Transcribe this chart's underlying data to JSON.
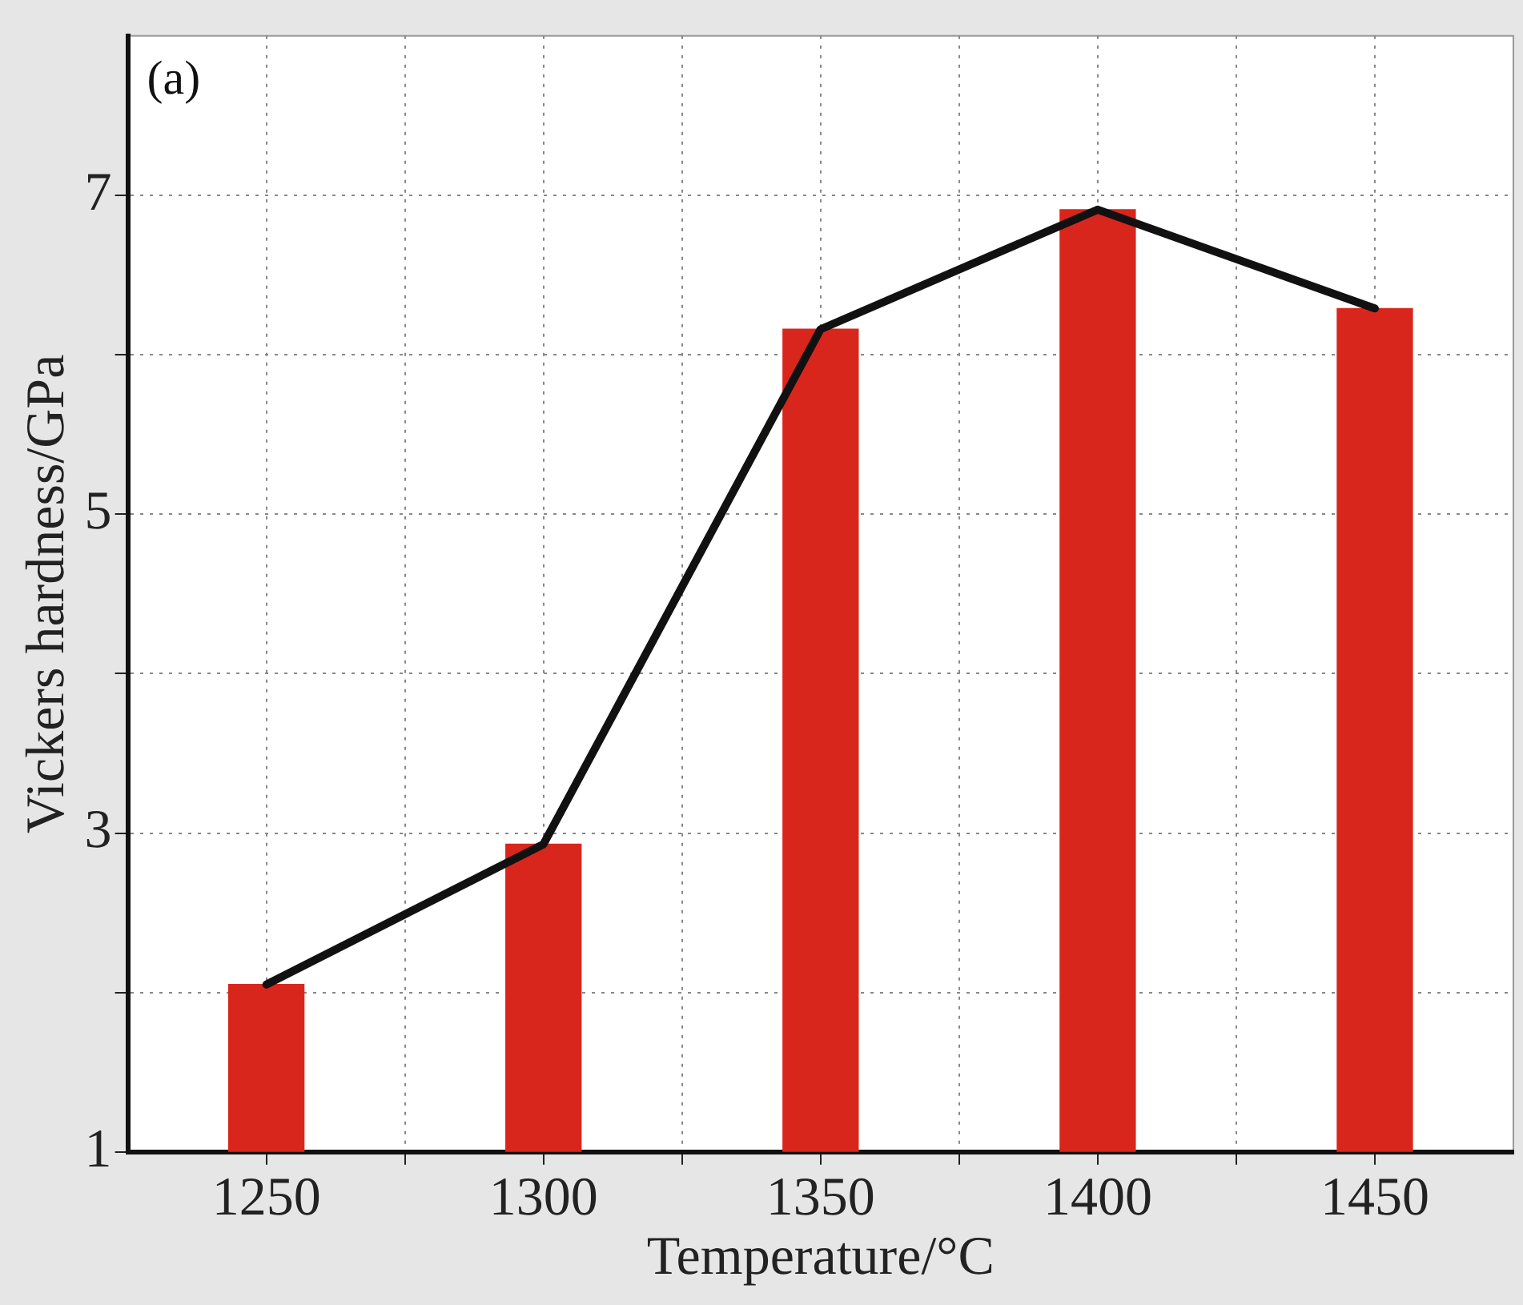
{
  "chart_data": {
    "type": "bar",
    "xlabel": "Temperature/°C",
    "ylabel": "Vickers hardness/GPa",
    "annotations": [
      "(a)"
    ],
    "x": [
      1250,
      1300,
      1350,
      1400,
      1450
    ],
    "xlim": [
      1225,
      1475
    ],
    "xticks": [
      1250,
      {
        "value": 1275,
        "label": null
      },
      1300,
      {
        "value": 1325,
        "label": null
      },
      1350,
      {
        "value": 1375,
        "label": null
      },
      1400,
      {
        "value": 1425,
        "label": null
      },
      1450
    ],
    "ylim": [
      1,
      8
    ],
    "yticks": [
      1,
      {
        "value": 2,
        "label": null
      },
      3,
      {
        "value": 4,
        "label": null
      },
      5,
      {
        "value": 6,
        "label": null
      },
      7
    ],
    "series": [
      {
        "color": "#d9261c",
        "values": [
          2.05,
          2.93,
          6.16,
          6.91,
          6.29
        ]
      },
      {
        "type": "line",
        "color": "#111111",
        "values": [
          2.05,
          2.93,
          6.16,
          6.91,
          6.29
        ]
      }
    ],
    "grid": true,
    "legend": false,
    "marker": "none",
    "line_style": "solid"
  }
}
